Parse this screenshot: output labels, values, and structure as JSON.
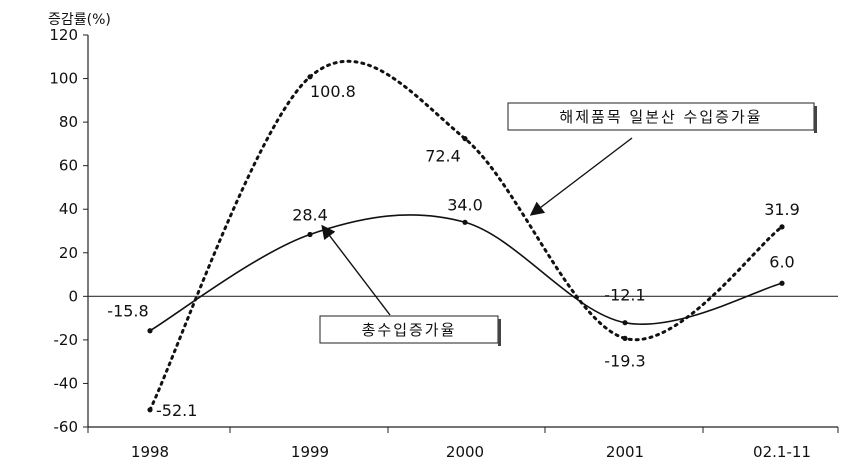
{
  "chart_data": {
    "type": "line",
    "unit_label": "증감률(%)",
    "categories": [
      "1998",
      "1999",
      "2000",
      "2001",
      "02.1-11"
    ],
    "ylim": [
      -60,
      120
    ],
    "yticks": [
      "120",
      "100",
      "80",
      "60",
      "40",
      "20",
      "0",
      "-20",
      "-40",
      "-60"
    ],
    "grid": false,
    "series": [
      {
        "name": "총수입증가율",
        "style": "solid",
        "values": [
          -15.8,
          28.4,
          34.0,
          -12.1,
          6.0
        ],
        "labels": [
          "-15.8",
          "28.4",
          "34.0",
          "-12.1",
          "6.0"
        ]
      },
      {
        "name": "해제품목 일본산 수입증가율",
        "style": "dotted",
        "values": [
          -52.1,
          100.8,
          72.4,
          -19.3,
          31.9
        ],
        "labels": [
          "-52.1",
          "100.8",
          "72.4",
          "-19.3",
          "31.9"
        ]
      }
    ]
  }
}
